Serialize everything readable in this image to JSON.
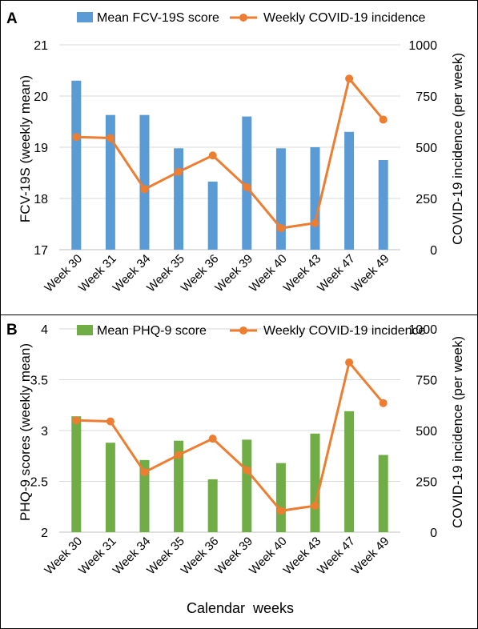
{
  "figure": {
    "xlabel": "Calendar  weeks"
  },
  "chart_data": [
    {
      "panel": "A",
      "type": "bar",
      "categories": [
        "Week 30",
        "Week 31",
        "Week 34",
        "Week 35",
        "Week 36",
        "Week 39",
        "Week 40",
        "Week 43",
        "Week 47",
        "Week 49"
      ],
      "series": [
        {
          "name": "Mean FCV-19S score",
          "type": "bar",
          "axis": "left",
          "color": "#5b9bd5",
          "values": [
            20.3,
            19.63,
            19.63,
            18.98,
            18.33,
            19.6,
            18.98,
            19.0,
            19.3,
            18.75
          ]
        },
        {
          "name": "Weekly COVID-19 incidence",
          "type": "line",
          "axis": "right",
          "color": "#ed7d31",
          "values": [
            550,
            545,
            295,
            380,
            460,
            305,
            105,
            130,
            835,
            635
          ]
        }
      ],
      "ylabel": "FCV-19S (weekly mean)",
      "ylim": [
        17,
        21
      ],
      "yticks": [
        "17",
        "18",
        "19",
        "20",
        "21"
      ],
      "ylabel_right": "COVID-19 incidence (per week)",
      "ylim_right": [
        0,
        1000
      ],
      "yticks_right": [
        "0",
        "250",
        "500",
        "750",
        "1000"
      ],
      "legend": "top"
    },
    {
      "panel": "B",
      "type": "bar",
      "categories": [
        "Week 30",
        "Week 31",
        "Week 34",
        "Week 35",
        "Week 36",
        "Week 39",
        "Week 40",
        "Week 43",
        "Week 47",
        "Week 49"
      ],
      "series": [
        {
          "name": "Mean PHQ-9 score",
          "type": "bar",
          "axis": "left",
          "color": "#70ad47",
          "values": [
            3.14,
            2.88,
            2.71,
            2.9,
            2.52,
            2.91,
            2.68,
            2.97,
            3.19,
            2.76
          ]
        },
        {
          "name": "Weekly COVID-19 incidence",
          "type": "line",
          "axis": "right",
          "color": "#ed7d31",
          "values": [
            550,
            545,
            295,
            380,
            460,
            305,
            105,
            130,
            835,
            635
          ]
        }
      ],
      "ylabel": "PHQ-9 scores (weekly mean)",
      "ylim": [
        2,
        4
      ],
      "yticks": [
        "2",
        "2.5",
        "3",
        "3.5",
        "4"
      ],
      "ylabel_right": "COVID-19 incidence (per week)",
      "ylim_right": [
        0,
        1000
      ],
      "yticks_right": [
        "0",
        "250",
        "500",
        "750",
        "1000"
      ],
      "legend": "top"
    }
  ]
}
